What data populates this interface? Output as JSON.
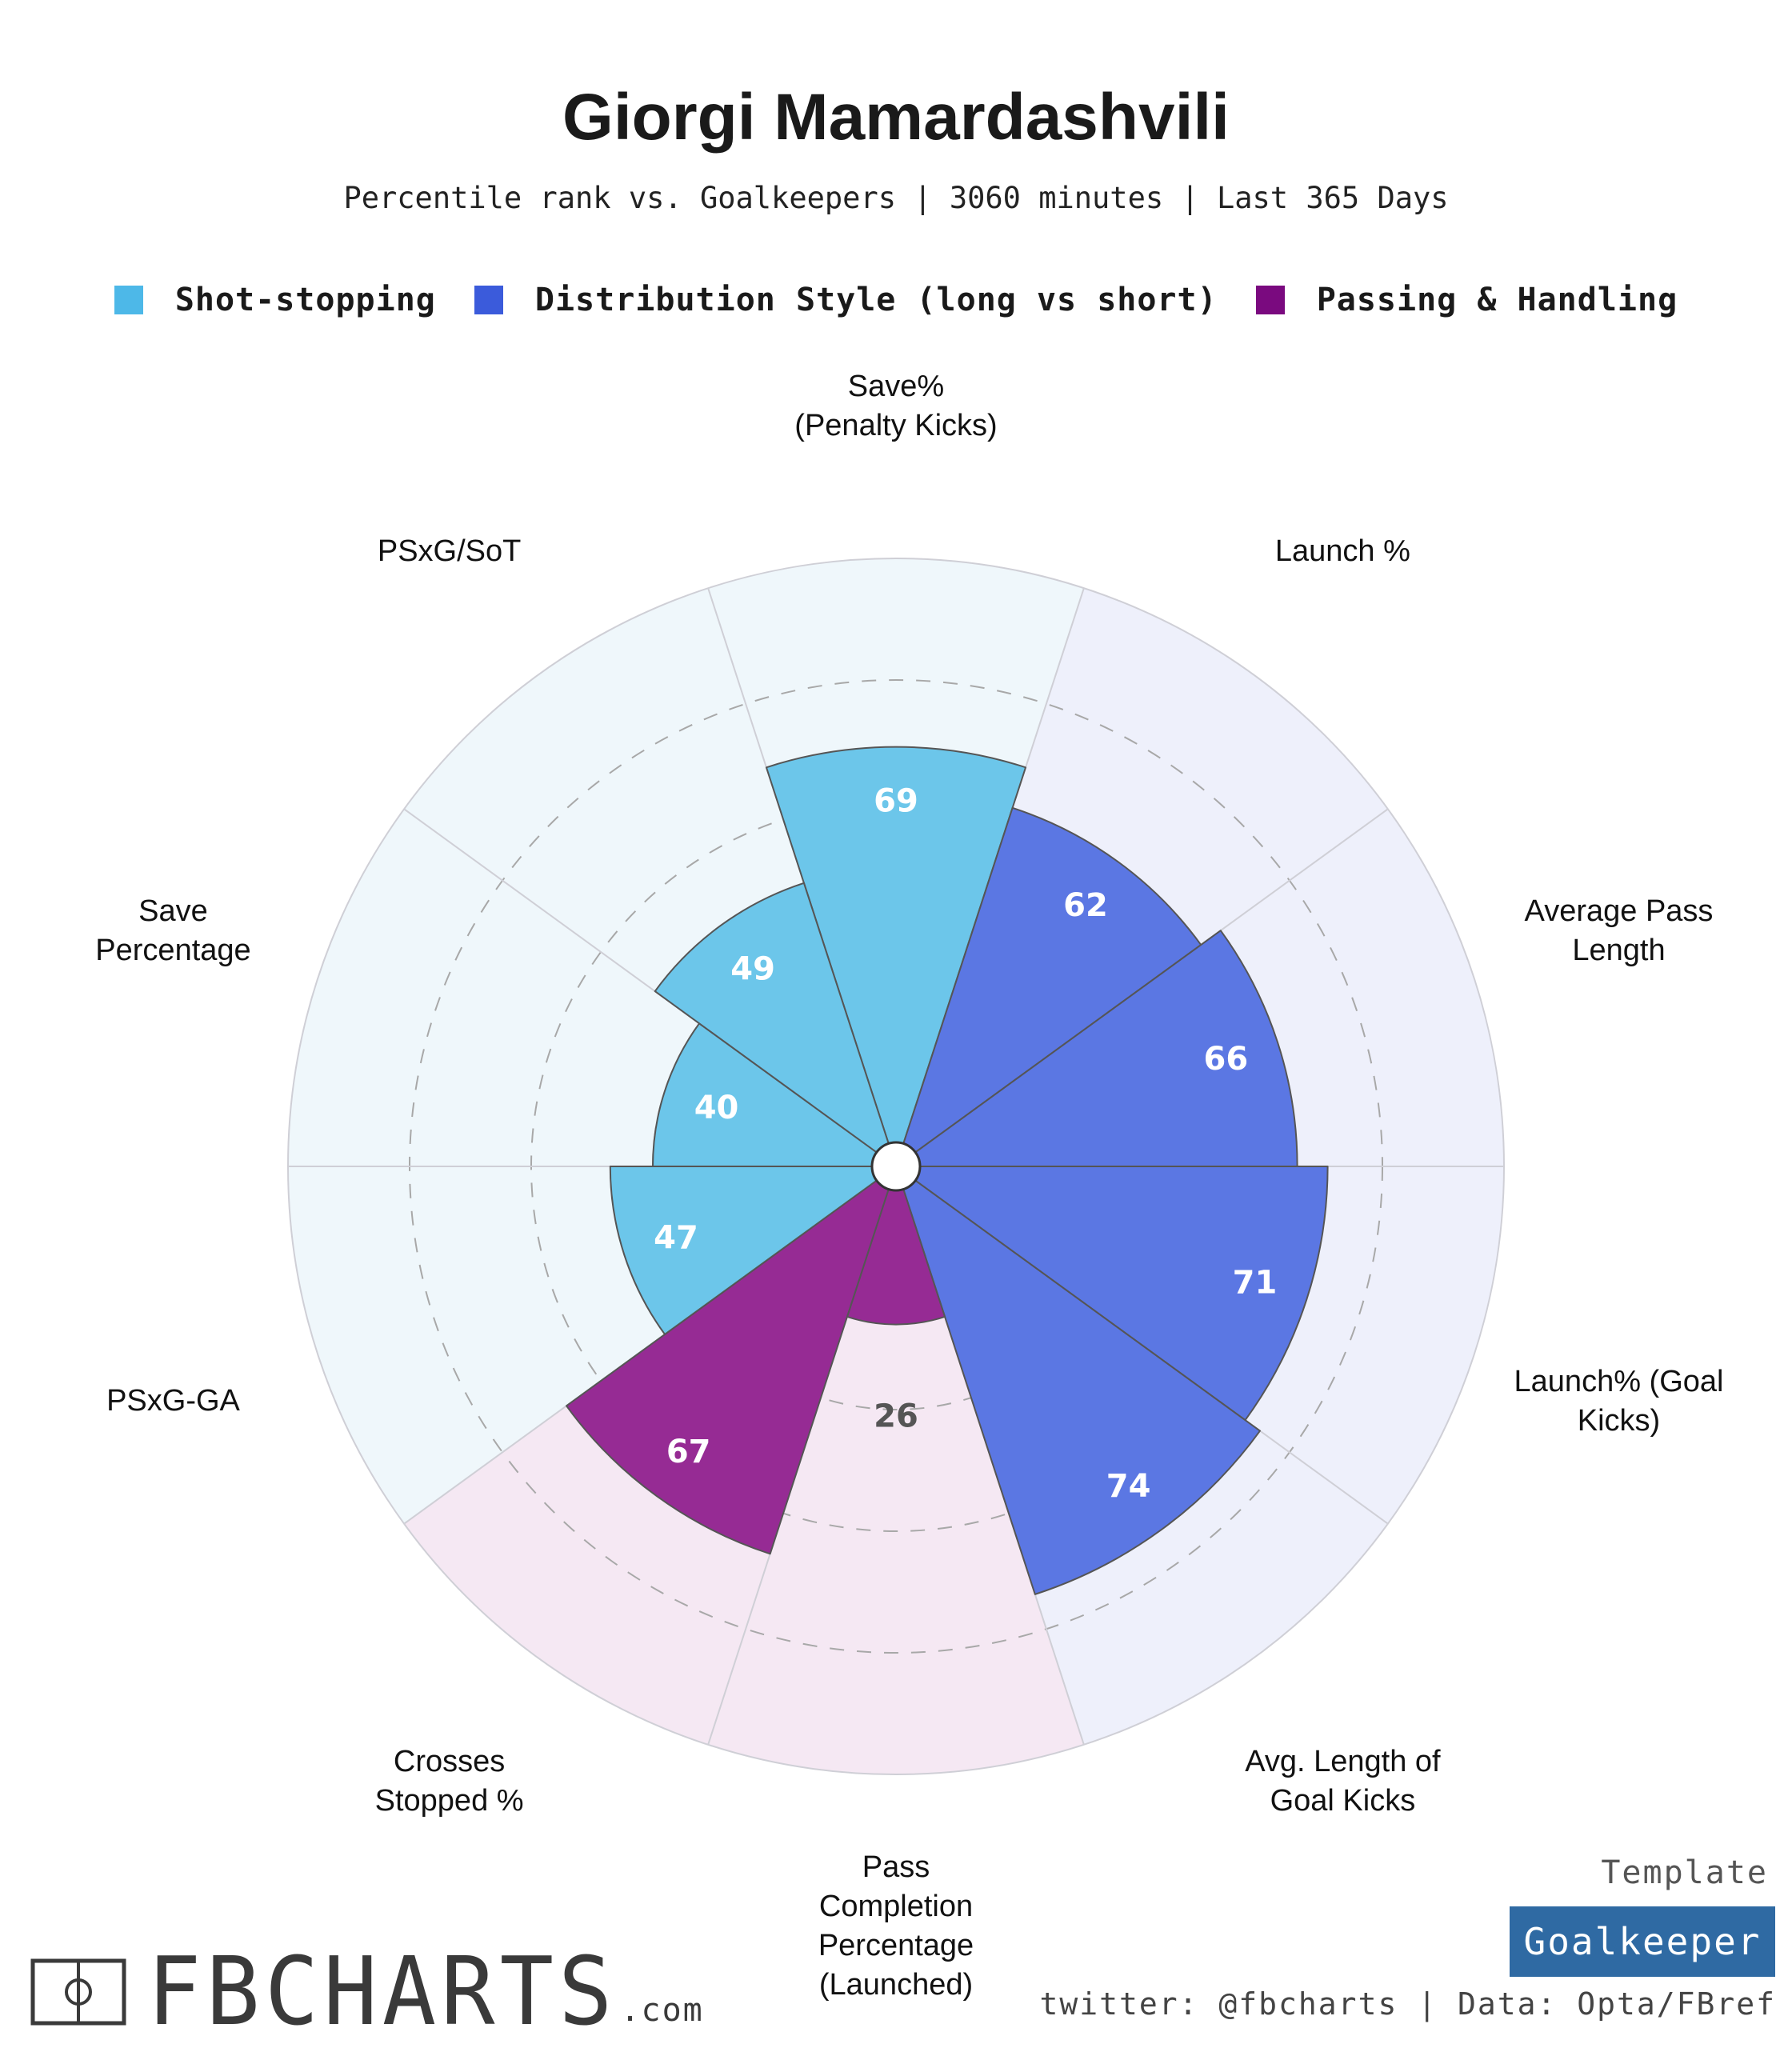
{
  "header": {
    "title": "Giorgi Mamardashvili",
    "subtitle": "Percentile rank vs. Goalkeepers | 3060 minutes | Last 365 Days"
  },
  "legend": [
    {
      "label": "Shot-stopping",
      "color": "#4db8e8"
    },
    {
      "label": "Distribution Style (long vs short)",
      "color": "#3b5bdb"
    },
    {
      "label": "Passing & Handling",
      "color": "#7a0a7f"
    }
  ],
  "chart_data": {
    "type": "polar-bar",
    "title": "Giorgi Mamardashvili",
    "subtitle": "Percentile rank vs. Goalkeepers | 3060 minutes | Last 365 Days",
    "range": [
      0,
      100
    ],
    "gridlines": [
      20,
      40,
      60,
      80
    ],
    "categories": [
      {
        "label": "Save%\n(Penalty Kicks)",
        "value": 69,
        "group": "Shot-stopping"
      },
      {
        "label": "Launch %",
        "value": 62,
        "group": "Distribution Style (long vs short)"
      },
      {
        "label": "Average Pass\nLength",
        "value": 66,
        "group": "Distribution Style (long vs short)"
      },
      {
        "label": "Launch% (Goal\nKicks)",
        "value": 71,
        "group": "Distribution Style (long vs short)"
      },
      {
        "label": "Avg. Length of\nGoal Kicks",
        "value": 74,
        "group": "Distribution Style (long vs short)"
      },
      {
        "label": "Pass\nCompletion\nPercentage\n(Launched)",
        "value": 26,
        "group": "Passing & Handling"
      },
      {
        "label": "Crosses\nStopped %",
        "value": 67,
        "group": "Passing & Handling"
      },
      {
        "label": "PSxG-GA",
        "value": 47,
        "group": "Shot-stopping"
      },
      {
        "label": "Save\nPercentage",
        "value": 40,
        "group": "Shot-stopping"
      },
      {
        "label": "PSxG/SoT",
        "value": 49,
        "group": "Shot-stopping"
      }
    ],
    "groups": [
      {
        "name": "Shot-stopping",
        "bar_color": "#6cc6ea",
        "bg_color": "#eff7fb"
      },
      {
        "name": "Distribution Style (long vs short)",
        "bar_color": "#5b77e3",
        "bg_color": "#eef0fb"
      },
      {
        "name": "Passing & Handling",
        "bar_color": "#962b94",
        "bg_color": "#f5e8f3"
      }
    ]
  },
  "footer": {
    "template_label": "Template",
    "template_value": "Goalkeeper",
    "credits": "twitter: @fbcharts | Data: Opta/FBref",
    "logo_text": "FBCHARTS",
    "logo_suffix": ".com"
  }
}
